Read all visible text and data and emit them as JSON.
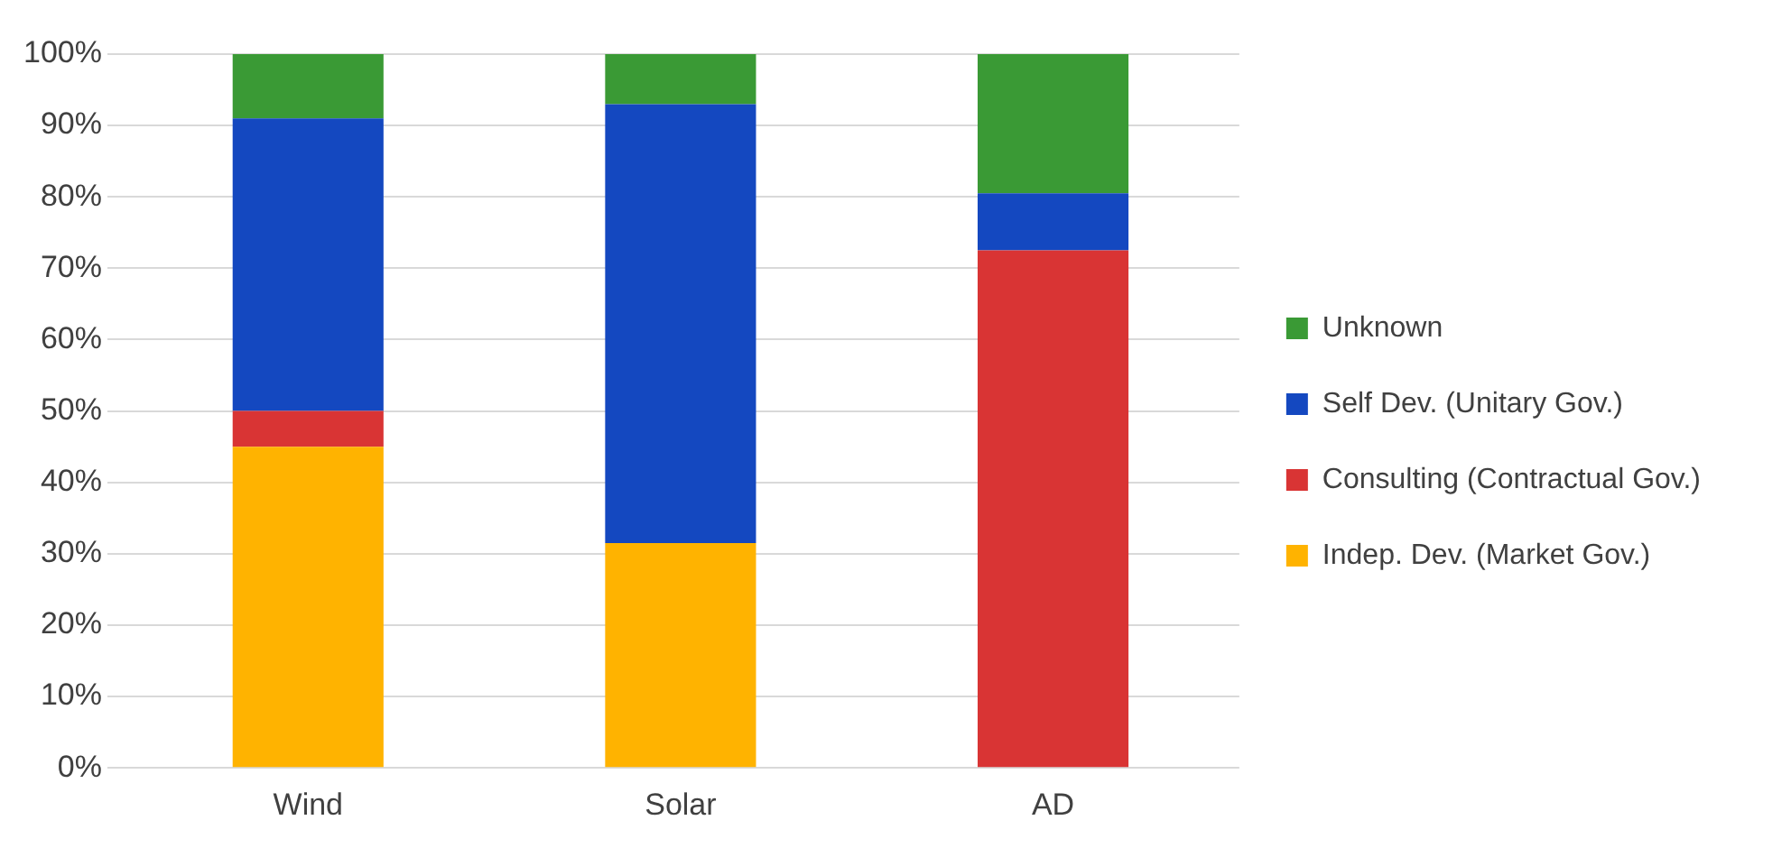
{
  "chart_data": {
    "type": "bar",
    "stacked": true,
    "categories": [
      "Wind",
      "Solar",
      "AD"
    ],
    "series": [
      {
        "name": "Indep. Dev. (Market Gov.)",
        "color": "#ffb300",
        "values": [
          45,
          31.5,
          0
        ]
      },
      {
        "name": "Consulting (Contractual Gov.)",
        "color": "#d93434",
        "values": [
          5,
          0,
          72.5
        ]
      },
      {
        "name": "Self Dev. (Unitary Gov.)",
        "color": "#1448c0",
        "values": [
          41,
          61.5,
          8
        ]
      },
      {
        "name": "Unknown",
        "color": "#3a9a35",
        "values": [
          9,
          7,
          19.5
        ]
      }
    ],
    "ylim": [
      0,
      100
    ],
    "yticks": [
      {
        "value": 0,
        "label": "0%"
      },
      {
        "value": 10,
        "label": "10%"
      },
      {
        "value": 20,
        "label": "20%"
      },
      {
        "value": 30,
        "label": "30%"
      },
      {
        "value": 40,
        "label": "40%"
      },
      {
        "value": 50,
        "label": "50%"
      },
      {
        "value": 60,
        "label": "60%"
      },
      {
        "value": 70,
        "label": "70%"
      },
      {
        "value": 80,
        "label": "80%"
      },
      {
        "value": 90,
        "label": "90%"
      },
      {
        "value": 100,
        "label": "100%"
      }
    ],
    "grid": "y",
    "legend": "right"
  }
}
